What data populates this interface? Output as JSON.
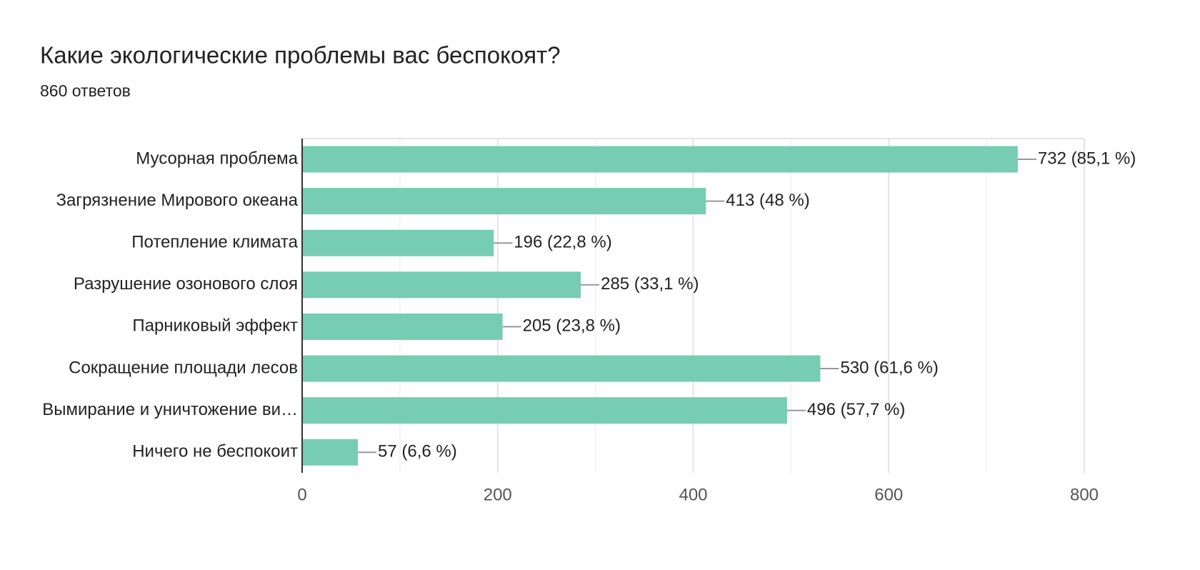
{
  "chart_data": {
    "type": "bar",
    "orientation": "horizontal",
    "title": "Какие экологические проблемы вас беспокоят?",
    "subtitle": "860 ответов",
    "categories": [
      "Мусорная проблема",
      "Загрязнение Мирового океана",
      "Потепление климата",
      "Разрушение озонового слоя",
      "Парниковый эффект",
      "Сокращение площади лесов",
      "Вымирание и уничтожение ви…",
      "Ничего не беспокоит"
    ],
    "values": [
      732,
      413,
      196,
      285,
      205,
      530,
      496,
      57
    ],
    "value_labels": [
      "732 (85,1 %)",
      "413 (48 %)",
      "196 (22,8 %)",
      "285 (33,1 %)",
      "205 (23,8 %)",
      "530 (61,6 %)",
      "496 (57,7 %)",
      "57 (6,6 %)"
    ],
    "color": "#76cdb1",
    "xlim": [
      0,
      800
    ],
    "xticks": [
      0,
      200,
      400,
      600,
      800
    ],
    "grid": true
  }
}
